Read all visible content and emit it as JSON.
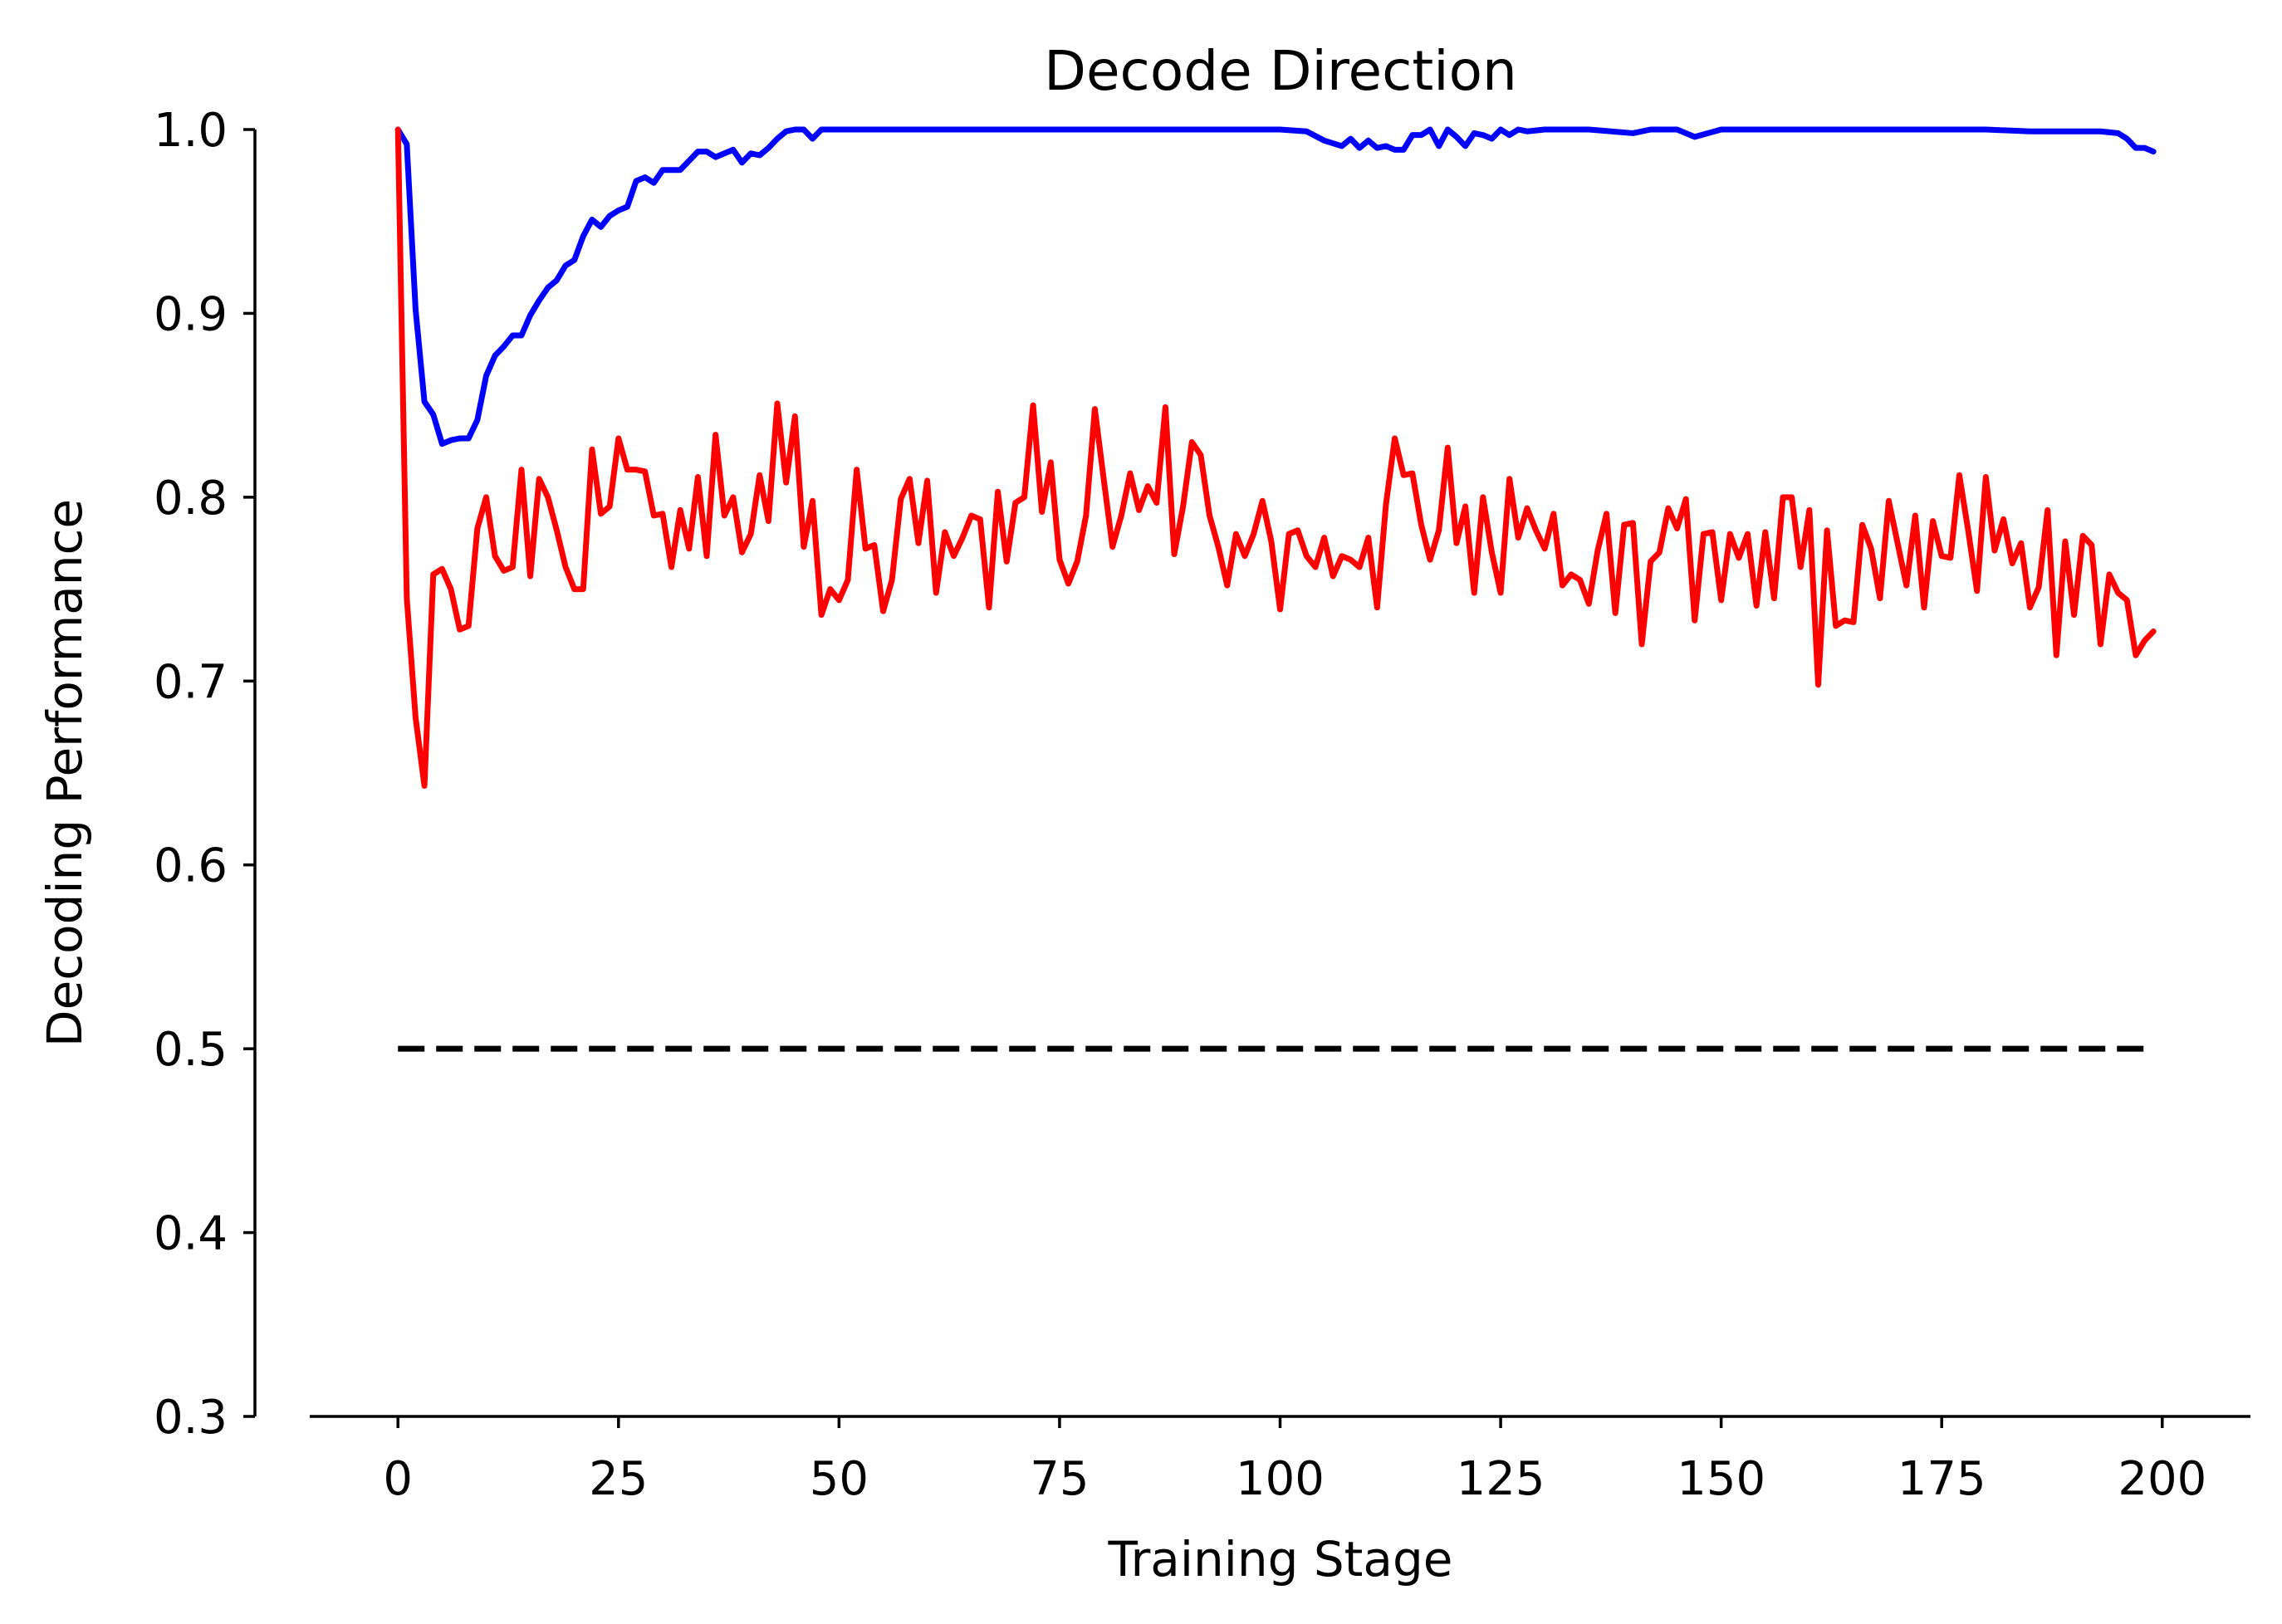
{
  "chart_data": {
    "type": "line",
    "title": "Decode Direction",
    "xlabel": "Training Stage",
    "ylabel": "Decoding Performance",
    "xlim": [
      -10,
      210
    ],
    "ylim": [
      0.3,
      1.0
    ],
    "xticks": [
      0,
      25,
      50,
      75,
      100,
      125,
      150,
      175,
      200
    ],
    "yticks": [
      0.3,
      0.4,
      0.5,
      0.6,
      0.7,
      0.8,
      0.9,
      1.0
    ],
    "xtick_labels": [
      "0",
      "25",
      "50",
      "75",
      "100",
      "125",
      "150",
      "175",
      "200"
    ],
    "ytick_labels": [
      "0.3",
      "0.4",
      "0.5",
      "0.6",
      "0.7",
      "0.8",
      "0.9",
      "1.0"
    ],
    "grid": false,
    "legend": "none",
    "series": [
      {
        "color": "#0000ff",
        "x": [
          0,
          1,
          2,
          3,
          4,
          5,
          6,
          7,
          8,
          9,
          10,
          11,
          12,
          13,
          14,
          15,
          16,
          17,
          18,
          19,
          20,
          21,
          22,
          23,
          24,
          25,
          26,
          27,
          28,
          29,
          30,
          31,
          32,
          33,
          34,
          35,
          36,
          37,
          38,
          39,
          40,
          41,
          42,
          43,
          44,
          45,
          46,
          47,
          48,
          49,
          50,
          55,
          60,
          65,
          70,
          75,
          80,
          85,
          90,
          95,
          100,
          103,
          105,
          107,
          108,
          109,
          110,
          111,
          112,
          113,
          114,
          115,
          116,
          117,
          118,
          119,
          120,
          121,
          122,
          123,
          124,
          125,
          126,
          127,
          128,
          130,
          135,
          140,
          142,
          145,
          147,
          150,
          155,
          160,
          165,
          170,
          175,
          180,
          185,
          190,
          193,
          195,
          196,
          197,
          198,
          199
        ],
        "y": [
          1.0,
          0.992,
          0.902,
          0.852,
          0.845,
          0.829,
          0.831,
          0.832,
          0.832,
          0.842,
          0.866,
          0.877,
          0.882,
          0.888,
          0.888,
          0.899,
          0.907,
          0.914,
          0.918,
          0.926,
          0.929,
          0.942,
          0.951,
          0.947,
          0.953,
          0.956,
          0.958,
          0.972,
          0.974,
          0.971,
          0.978,
          0.978,
          0.978,
          0.983,
          0.988,
          0.988,
          0.985,
          0.987,
          0.989,
          0.982,
          0.987,
          0.986,
          0.99,
          0.995,
          0.999,
          1.0,
          1.0,
          0.995,
          1.0,
          1.0,
          1.0,
          1.0,
          1.0,
          1.0,
          1.0,
          1.0,
          1.0,
          1.0,
          1.0,
          1.0,
          1.0,
          0.999,
          0.994,
          0.991,
          0.995,
          0.99,
          0.994,
          0.99,
          0.991,
          0.989,
          0.989,
          0.997,
          0.997,
          1.0,
          0.991,
          1.0,
          0.996,
          0.991,
          0.998,
          0.997,
          0.995,
          1.0,
          0.997,
          1.0,
          0.999,
          1.0,
          1.0,
          0.998,
          1.0,
          1.0,
          0.996,
          1.0,
          1.0,
          1.0,
          1.0,
          1.0,
          1.0,
          1.0,
          0.999,
          0.999,
          0.999,
          0.998,
          0.995,
          0.99,
          0.99,
          0.988
        ]
      },
      {
        "color": "#ff0000",
        "x": [
          0,
          1,
          2,
          3,
          4,
          5,
          6,
          7,
          8,
          9,
          10,
          11,
          12,
          13,
          14,
          15,
          16,
          17,
          18,
          19,
          20,
          21,
          22,
          23,
          24,
          25,
          26,
          27,
          28,
          29,
          30,
          31,
          32,
          33,
          34,
          35,
          36,
          37,
          38,
          39,
          40,
          41,
          42,
          43,
          44,
          45,
          46,
          47,
          48,
          49,
          50,
          51,
          52,
          53,
          54,
          55,
          56,
          57,
          58,
          59,
          60,
          61,
          62,
          63,
          64,
          65,
          66,
          67,
          68,
          69,
          70,
          71,
          72,
          73,
          74,
          75,
          76,
          77,
          78,
          79,
          80,
          81,
          82,
          83,
          84,
          85,
          86,
          87,
          88,
          89,
          90,
          91,
          92,
          93,
          94,
          95,
          96,
          97,
          98,
          99,
          100,
          101,
          102,
          103,
          104,
          105,
          106,
          107,
          108,
          109,
          110,
          111,
          112,
          113,
          114,
          115,
          116,
          117,
          118,
          119,
          120,
          121,
          122,
          123,
          124,
          125,
          126,
          127,
          128,
          129,
          130,
          131,
          132,
          133,
          134,
          135,
          136,
          137,
          138,
          139,
          140,
          141,
          142,
          143,
          144,
          145,
          146,
          147,
          148,
          149,
          150,
          151,
          152,
          153,
          154,
          155,
          156,
          157,
          158,
          159,
          160,
          161,
          162,
          163,
          164,
          165,
          166,
          167,
          168,
          169,
          170,
          171,
          172,
          173,
          174,
          175,
          176,
          177,
          178,
          179,
          180,
          181,
          182,
          183,
          184,
          185,
          186,
          187,
          188,
          189,
          190,
          191,
          192,
          193,
          194,
          195,
          196,
          197,
          198,
          199
        ],
        "y": [
          1.0,
          0.745,
          0.68,
          0.643,
          0.758,
          0.761,
          0.75,
          0.728,
          0.73,
          0.783,
          0.8,
          0.768,
          0.76,
          0.762,
          0.815,
          0.757,
          0.81,
          0.8,
          0.782,
          0.762,
          0.75,
          0.75,
          0.826,
          0.791,
          0.795,
          0.832,
          0.815,
          0.815,
          0.814,
          0.79,
          0.791,
          0.762,
          0.793,
          0.772,
          0.811,
          0.768,
          0.834,
          0.79,
          0.8,
          0.77,
          0.78,
          0.812,
          0.787,
          0.851,
          0.808,
          0.844,
          0.773,
          0.798,
          0.736,
          0.75,
          0.744,
          0.755,
          0.815,
          0.772,
          0.774,
          0.738,
          0.755,
          0.799,
          0.81,
          0.775,
          0.809,
          0.748,
          0.781,
          0.768,
          0.778,
          0.79,
          0.788,
          0.74,
          0.803,
          0.765,
          0.797,
          0.8,
          0.85,
          0.792,
          0.819,
          0.766,
          0.753,
          0.765,
          0.79,
          0.848,
          0.81,
          0.773,
          0.79,
          0.813,
          0.793,
          0.806,
          0.797,
          0.849,
          0.769,
          0.795,
          0.83,
          0.823,
          0.79,
          0.773,
          0.752,
          0.78,
          0.768,
          0.78,
          0.798,
          0.776,
          0.739,
          0.78,
          0.782,
          0.768,
          0.762,
          0.778,
          0.757,
          0.768,
          0.766,
          0.762,
          0.778,
          0.74,
          0.796,
          0.832,
          0.812,
          0.813,
          0.785,
          0.766,
          0.782,
          0.827,
          0.775,
          0.795,
          0.748,
          0.8,
          0.77,
          0.748,
          0.81,
          0.778,
          0.794,
          0.782,
          0.772,
          0.791,
          0.752,
          0.758,
          0.755,
          0.742,
          0.771,
          0.791,
          0.737,
          0.785,
          0.786,
          0.72,
          0.765,
          0.77,
          0.794,
          0.783,
          0.799,
          0.733,
          0.78,
          0.781,
          0.744,
          0.78,
          0.767,
          0.78,
          0.741,
          0.781,
          0.745,
          0.8,
          0.8,
          0.762,
          0.793,
          0.698,
          0.782,
          0.73,
          0.733,
          0.732,
          0.785,
          0.772,
          0.745,
          0.798,
          0.775,
          0.752,
          0.79,
          0.74,
          0.787,
          0.768,
          0.767,
          0.812,
          0.782,
          0.749,
          0.811,
          0.771,
          0.788,
          0.764,
          0.775,
          0.74,
          0.751,
          0.793,
          0.714,
          0.776,
          0.736,
          0.779,
          0.774,
          0.72,
          0.758,
          0.748,
          0.744,
          0.714,
          0.722,
          0.727
        ]
      },
      {
        "color": "#000000",
        "style": "dashed",
        "x": [
          0,
          199
        ],
        "y": [
          0.5,
          0.5
        ]
      }
    ]
  }
}
